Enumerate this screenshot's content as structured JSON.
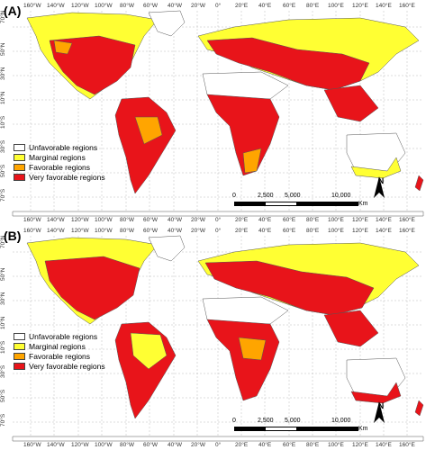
{
  "panels": [
    {
      "label": "(A)"
    },
    {
      "label": "(B)"
    }
  ],
  "legend": [
    {
      "label": "Unfavorable regions",
      "color": "#ffffff"
    },
    {
      "label": "Marginal regions",
      "color": "#ffff33"
    },
    {
      "label": "Favorable regions",
      "color": "#ffa500"
    },
    {
      "label": "Very favorable regions",
      "color": "#e8141a"
    }
  ],
  "lon_ticks": [
    "160°W",
    "140°W",
    "120°W",
    "100°W",
    "80°W",
    "60°W",
    "40°W",
    "20°W",
    "0°",
    "20°E",
    "40°E",
    "60°E",
    "80°E",
    "100°E",
    "120°E",
    "140°E",
    "160°E"
  ],
  "lat_ticks": [
    "70°N",
    "50°N",
    "30°N",
    "10°N",
    "10°S",
    "30°S",
    "50°S",
    "70°S"
  ],
  "scale": {
    "labels": [
      "0",
      "2,500",
      "5,000",
      "10,000"
    ],
    "unit": "Km"
  },
  "north": "N"
}
